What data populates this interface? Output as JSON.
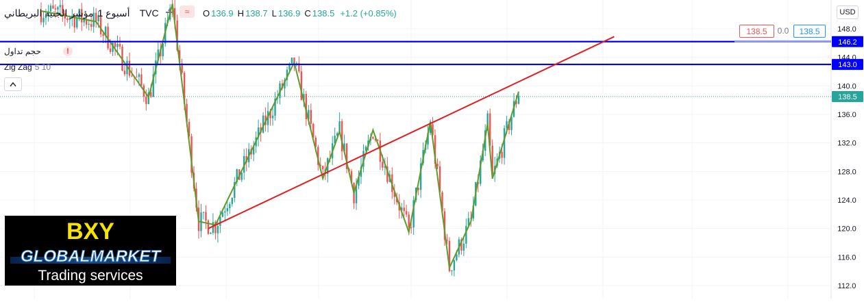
{
  "header": {
    "symbol_name": "مؤشر الجنيه البريطاني",
    "timeframe": "أسبوع 1",
    "exchange": "TVC",
    "collapse_icon": "minus-icon",
    "compare_icon": "wave-icon"
  },
  "ohlc": {
    "open_label": "O",
    "open": "136.9",
    "high_label": "H",
    "high": "138.7",
    "low_label": "L",
    "low": "136.9",
    "close_label": "C",
    "close": "138.5",
    "change": "+1.2 (+0.85%)"
  },
  "indicators": {
    "volume_label": "حجم تداول",
    "volume_warning": "!",
    "zigzag_label": "Zig Zag",
    "zigzag_params": "5 10",
    "collapse_icon": "chevron-up-icon"
  },
  "trade_panel": {
    "sell_price": "138.5",
    "spread": "0.0",
    "buy_price": "138.5"
  },
  "currency_button": "USD",
  "price_axis": {
    "ticks": [
      "148.0",
      "144.0",
      "140.0",
      "136.0",
      "132.0",
      "128.0",
      "124.0",
      "120.0",
      "116.0",
      "112.0"
    ],
    "labels": [
      {
        "text": "146.2",
        "color": "#0000ff"
      },
      {
        "text": "143.0",
        "color": "#0000ff"
      },
      {
        "text": "138.5",
        "color": "#26a69a"
      }
    ]
  },
  "watermark": {
    "line1": "BXY",
    "line2": "GLOBALMARKET",
    "line3": "Trading services"
  },
  "chart_data": {
    "type": "candlestick",
    "ylim": [
      111,
      150
    ],
    "horizontal_levels": [
      146.2,
      143.0
    ],
    "last_price": 138.5,
    "colors": {
      "up": "#26a69a",
      "down": "#ef5350",
      "level": "#0000ff",
      "trendline": "#e31e1e",
      "zigzag": "#5f9a2c"
    },
    "zigzag_points": [
      {
        "i": 0,
        "y": 150.5
      },
      {
        "i": 23,
        "y": 149.0
      },
      {
        "i": 45,
        "y": 138.4
      },
      {
        "i": 55,
        "y": 151.5
      },
      {
        "i": 66,
        "y": 121.0
      },
      {
        "i": 73,
        "y": 120.5
      },
      {
        "i": 106,
        "y": 143.3
      },
      {
        "i": 118,
        "y": 127.0
      },
      {
        "i": 125,
        "y": 133.6
      },
      {
        "i": 131,
        "y": 125.0
      },
      {
        "i": 139,
        "y": 133.8
      },
      {
        "i": 154,
        "y": 119.5
      },
      {
        "i": 163,
        "y": 135.0
      },
      {
        "i": 171,
        "y": 114.5
      },
      {
        "i": 180,
        "y": 121.0
      },
      {
        "i": 187,
        "y": 134.7
      },
      {
        "i": 189,
        "y": 127.0
      },
      {
        "i": 200,
        "y": 139.2
      }
    ],
    "trendline": {
      "from": {
        "i": 70,
        "y": 120.0
      },
      "to": {
        "i": 240,
        "y": 146.9
      }
    }
  }
}
